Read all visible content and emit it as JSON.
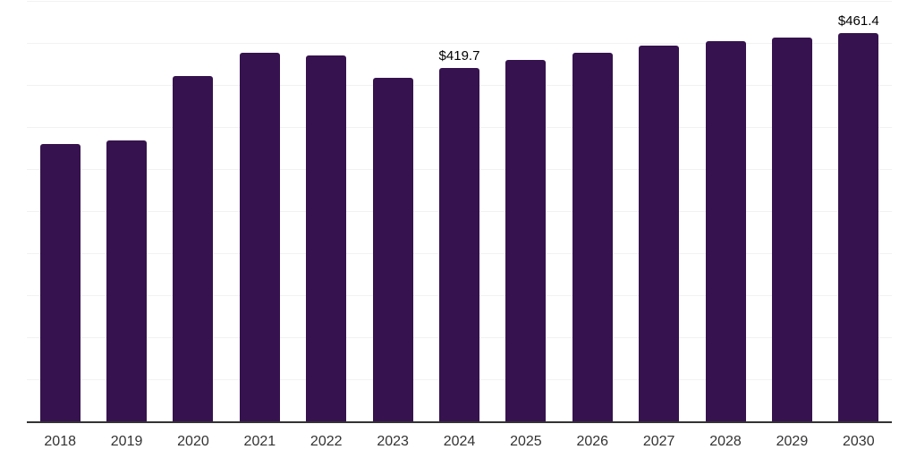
{
  "chart_data": {
    "type": "bar",
    "title": "",
    "xlabel": "",
    "ylabel": "",
    "categories": [
      "2018",
      "2019",
      "2020",
      "2021",
      "2022",
      "2023",
      "2024",
      "2025",
      "2026",
      "2027",
      "2028",
      "2029",
      "2030"
    ],
    "values": [
      329.5,
      333.7,
      410.2,
      438.8,
      434.6,
      408.0,
      419.7,
      430.3,
      438.6,
      446.3,
      452.6,
      456.9,
      461.4
    ],
    "value_prefix": "$",
    "data_labels": [
      {
        "category": "2024",
        "text": "$419.7"
      },
      {
        "category": "2030",
        "text": "$461.4"
      }
    ],
    "ylim": [
      0,
      500
    ],
    "gridline_interval": 50,
    "grid": "horizontal-only",
    "legend": "none",
    "y_axis_tick_labels": "none",
    "colors": {
      "bar": "#36124E",
      "gridline": "#f2f2f2",
      "axis_line": "#333333",
      "tick_label": "#333333",
      "data_label": "#000000",
      "background": "#ffffff"
    }
  }
}
